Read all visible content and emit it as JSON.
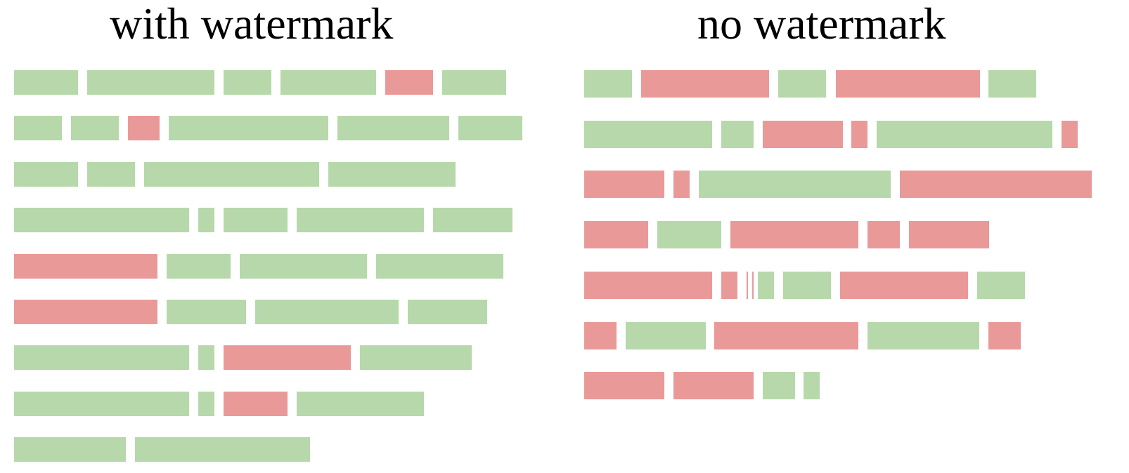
{
  "colors": {
    "green_token": "#b7d8aa",
    "red_token": "#ea9999"
  },
  "panels": [
    {
      "key": "left",
      "title": "with watermark",
      "rows": [
        [
          {
            "len": 4,
            "kind": "green"
          },
          {
            "len": 8,
            "kind": "green"
          },
          {
            "len": 3,
            "kind": "green"
          },
          {
            "len": 6,
            "kind": "green"
          },
          {
            "len": 3,
            "kind": "red"
          },
          {
            "len": 4,
            "kind": "green"
          }
        ],
        [
          {
            "len": 3,
            "kind": "green"
          },
          {
            "len": 3,
            "kind": "green"
          },
          {
            "len": 2,
            "kind": "red"
          },
          {
            "len": 10,
            "kind": "green"
          },
          {
            "len": 7,
            "kind": "green"
          },
          {
            "len": 4,
            "kind": "green"
          }
        ],
        [
          {
            "len": 4,
            "kind": "green"
          },
          {
            "len": 3,
            "kind": "green"
          },
          {
            "len": 11,
            "kind": "green"
          },
          {
            "len": 8,
            "kind": "green"
          }
        ],
        [
          {
            "len": 11,
            "kind": "green"
          },
          {
            "len": 1,
            "kind": "green"
          },
          {
            "len": 4,
            "kind": "green"
          },
          {
            "len": 8,
            "kind": "green"
          },
          {
            "len": 5,
            "kind": "green"
          }
        ],
        [
          {
            "len": 9,
            "kind": "red"
          },
          {
            "len": 4,
            "kind": "green"
          },
          {
            "len": 8,
            "kind": "green"
          },
          {
            "len": 8,
            "kind": "green"
          }
        ],
        [
          {
            "len": 9,
            "kind": "red"
          },
          {
            "len": 5,
            "kind": "green"
          },
          {
            "len": 9,
            "kind": "green"
          },
          {
            "len": 5,
            "kind": "green"
          }
        ],
        [
          {
            "len": 11,
            "kind": "green"
          },
          {
            "len": 1,
            "kind": "green"
          },
          {
            "len": 8,
            "kind": "red"
          },
          {
            "len": 7,
            "kind": "green"
          }
        ],
        [
          {
            "len": 11,
            "kind": "green"
          },
          {
            "len": 1,
            "kind": "green"
          },
          {
            "len": 4,
            "kind": "red"
          },
          {
            "len": 8,
            "kind": "green"
          }
        ],
        [
          {
            "len": 7,
            "kind": "green"
          },
          {
            "len": 11,
            "kind": "green"
          }
        ]
      ]
    },
    {
      "key": "right",
      "title": "no watermark",
      "rows": [
        [
          {
            "len": 3,
            "kind": "green"
          },
          {
            "len": 8,
            "kind": "red"
          },
          {
            "len": 3,
            "kind": "green"
          },
          {
            "len": 9,
            "kind": "red"
          },
          {
            "len": 3,
            "kind": "green"
          }
        ],
        [
          {
            "len": 8,
            "kind": "green"
          },
          {
            "len": 2,
            "kind": "green"
          },
          {
            "len": 5,
            "kind": "red"
          },
          {
            "len": 1,
            "kind": "red"
          },
          {
            "len": 11,
            "kind": "green"
          },
          {
            "len": 1,
            "kind": "red"
          }
        ],
        [
          {
            "len": 5,
            "kind": "red"
          },
          {
            "len": 1,
            "kind": "red"
          },
          {
            "len": 12,
            "kind": "green"
          },
          {
            "len": 12,
            "kind": "red"
          }
        ],
        [
          {
            "len": 4,
            "kind": "red"
          },
          {
            "len": 4,
            "kind": "green"
          },
          {
            "len": 8,
            "kind": "red"
          },
          {
            "len": 2,
            "kind": "red"
          },
          {
            "len": 5,
            "kind": "red"
          }
        ],
        [
          {
            "len": 8,
            "kind": "red"
          },
          {
            "len": 1,
            "kind": "red"
          },
          {
            "len": 0.1,
            "kind": "red"
          },
          {
            "len": 0.1,
            "kind": "red"
          },
          {
            "len": 1,
            "kind": "green"
          },
          {
            "len": 3,
            "kind": "green"
          },
          {
            "len": 8,
            "kind": "red"
          },
          {
            "len": 3,
            "kind": "green"
          }
        ],
        [
          {
            "len": 2,
            "kind": "red"
          },
          {
            "len": 5,
            "kind": "green"
          },
          {
            "len": 9,
            "kind": "red"
          },
          {
            "len": 7,
            "kind": "green"
          },
          {
            "len": 2,
            "kind": "red"
          }
        ],
        [
          {
            "len": 5,
            "kind": "red"
          },
          {
            "len": 5,
            "kind": "red"
          },
          {
            "len": 2,
            "kind": "green"
          },
          {
            "len": 1,
            "kind": "green"
          }
        ]
      ]
    }
  ]
}
